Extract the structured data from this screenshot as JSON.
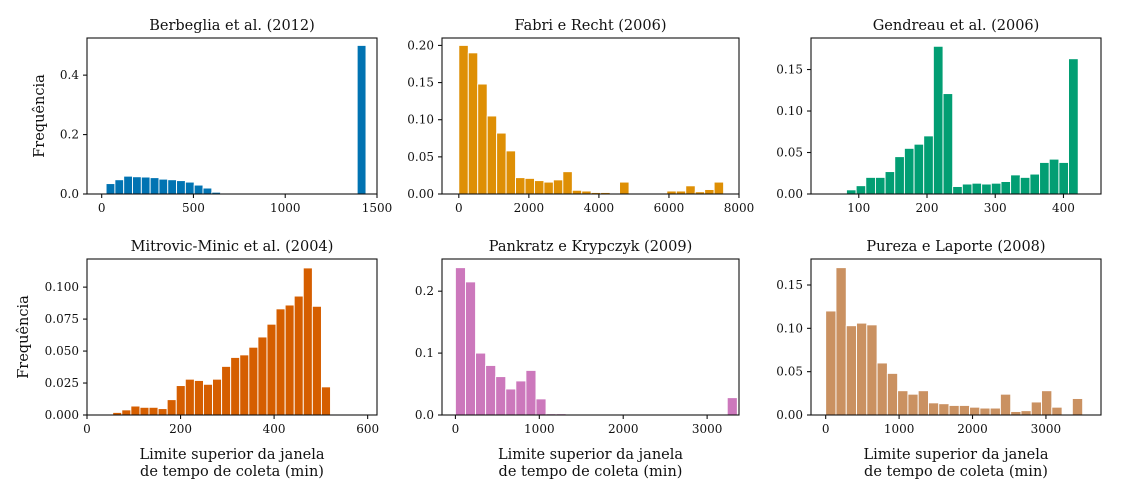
{
  "chart_data": [
    {
      "type": "bar",
      "title": "Berbeglia et al. (2012)",
      "ylabel": "Frequência",
      "xlabel": "",
      "color": "#0173b2",
      "xlim": [
        -80,
        1500
      ],
      "ylim": [
        0,
        0.525
      ],
      "xticks": [
        0,
        500,
        1000,
        1500
      ],
      "xtick_labels": [
        "0",
        "500",
        "1000",
        "1500"
      ],
      "yticks": [
        0.0,
        0.2,
        0.4
      ],
      "ytick_labels": [
        "0.0",
        "0.2",
        "0.4"
      ],
      "bin_width": 48,
      "bin_start": [
        24,
        72,
        120,
        168,
        216,
        264,
        312,
        360,
        408,
        456,
        504,
        552,
        600,
        648,
        1392
      ],
      "values": [
        0.035,
        0.048,
        0.06,
        0.058,
        0.057,
        0.055,
        0.05,
        0.048,
        0.045,
        0.04,
        0.03,
        0.02,
        0.006,
        0.002,
        0.5
      ]
    },
    {
      "type": "bar",
      "title": "Fabri e Recht (2006)",
      "ylabel": "",
      "xlabel": "",
      "color": "#de8f05",
      "xlim": [
        -480,
        8000
      ],
      "ylim": [
        0,
        0.21
      ],
      "xticks": [
        0,
        2000,
        4000,
        6000,
        8000
      ],
      "xtick_labels": [
        "0",
        "2000",
        "4000",
        "6000",
        "8000"
      ],
      "yticks": [
        0.0,
        0.05,
        0.1,
        0.15,
        0.2
      ],
      "ytick_labels": [
        "0.00",
        "0.05",
        "0.10",
        "0.15",
        "0.20"
      ],
      "bin_width": 270,
      "bin_start": [
        0,
        270,
        540,
        810,
        1080,
        1350,
        1620,
        1890,
        2160,
        2430,
        2700,
        2970,
        3240,
        3510,
        3780,
        4050,
        4590,
        5940,
        6210,
        6480,
        6750,
        7020,
        7290
      ],
      "values": [
        0.2,
        0.19,
        0.148,
        0.105,
        0.082,
        0.058,
        0.022,
        0.021,
        0.018,
        0.016,
        0.019,
        0.03,
        0.005,
        0.004,
        0.002,
        0.002,
        0.016,
        0.004,
        0.004,
        0.011,
        0.003,
        0.006,
        0.016
      ]
    },
    {
      "type": "bar",
      "title": "Gendreau et al. (2006)",
      "ylabel": "",
      "xlabel": "",
      "color": "#029e73",
      "xlim": [
        30,
        455
      ],
      "ylim": [
        0,
        0.188
      ],
      "xticks": [
        100,
        200,
        300,
        400
      ],
      "xtick_labels": [
        "100",
        "200",
        "300",
        "400"
      ],
      "yticks": [
        0.0,
        0.05,
        0.1,
        0.15
      ],
      "ytick_labels": [
        "0.00",
        "0.05",
        "0.10",
        "0.15"
      ],
      "bin_width": 14.15,
      "bin_start": [
        82,
        96.15,
        110.3,
        124.45,
        138.6,
        152.75,
        166.9,
        181.05,
        195.2,
        209.35,
        223.5,
        237.65,
        251.8,
        265.95,
        280.1,
        294.25,
        308.4,
        322.55,
        336.7,
        350.85,
        365,
        379.15,
        393.3,
        407.45,
        421.6
      ],
      "values": [
        0.005,
        0.01,
        0.02,
        0.02,
        0.027,
        0.045,
        0.055,
        0.06,
        0.07,
        0.178,
        0.121,
        0.009,
        0.012,
        0.013,
        0.012,
        0.013,
        0.015,
        0.023,
        0.02,
        0.024,
        0.038,
        0.042,
        0.038,
        0.163,
        0.0
      ]
    },
    {
      "type": "bar",
      "title": "Mitrovic-Minic et al. (2004)",
      "ylabel": "Frequência",
      "xlabel": "Limite superior da janela\nde tempo de coleta (min)",
      "color": "#d55e00",
      "xlim": [
        0,
        620
      ],
      "ylim": [
        0,
        0.122
      ],
      "xticks": [
        0,
        200,
        400,
        600
      ],
      "xtick_labels": [
        "0",
        "200",
        "400",
        "600"
      ],
      "yticks": [
        0.0,
        0.025,
        0.05,
        0.075,
        0.1
      ],
      "ytick_labels": [
        "0.000",
        "0.025",
        "0.050",
        "0.075",
        "0.100"
      ],
      "bin_width": 19.4,
      "bin_start": [
        55,
        74.4,
        93.8,
        113.2,
        132.6,
        152,
        171.4,
        190.8,
        210.2,
        229.6,
        249,
        268.4,
        287.8,
        307.2,
        326.6,
        346,
        365.4,
        384.8,
        404.2,
        423.6,
        443,
        462.4,
        481.8,
        501.2,
        520.6,
        540,
        559.4
      ],
      "values": [
        0.002,
        0.004,
        0.007,
        0.006,
        0.006,
        0.005,
        0.012,
        0.023,
        0.028,
        0.027,
        0.024,
        0.028,
        0.038,
        0.045,
        0.047,
        0.053,
        0.061,
        0.071,
        0.083,
        0.086,
        0.093,
        0.115,
        0.085,
        0.022,
        0.0,
        0.0,
        0.0
      ]
    },
    {
      "type": "bar",
      "title": "Pankratz e Krypczyk (2009)",
      "ylabel": "",
      "xlabel": "Limite superior da janela\nde tempo de coleta (min)",
      "color": "#cc78bc",
      "xlim": [
        -160,
        3380
      ],
      "ylim": [
        0,
        0.252
      ],
      "xticks": [
        0,
        1000,
        2000,
        3000
      ],
      "xtick_labels": [
        "0",
        "1000",
        "2000",
        "3000"
      ],
      "yticks": [
        0.0,
        0.1,
        0.2
      ],
      "ytick_labels": [
        "0.0",
        "0.1",
        "0.2"
      ],
      "bin_width": 120,
      "bin_start": [
        0,
        120,
        240,
        360,
        480,
        600,
        720,
        840,
        960,
        1080,
        1200,
        1320,
        1440,
        1560,
        1680,
        1800,
        1920,
        2280,
        2760,
        3240
      ],
      "values": [
        0.238,
        0.215,
        0.1,
        0.08,
        0.062,
        0.042,
        0.055,
        0.072,
        0.026,
        0.002,
        0.002,
        0.001,
        0.001,
        0.001,
        0.001,
        0.001,
        0.001,
        0.001,
        0.001,
        0.028
      ]
    },
    {
      "type": "bar",
      "title": "Pureza e Laporte (2008)",
      "ylabel": "",
      "xlabel": "Limite superior da janela\nde tempo de coleta (min)",
      "color": "#ca9161",
      "xlim": [
        -200,
        3750
      ],
      "ylim": [
        0,
        0.18
      ],
      "xticks": [
        0,
        1000,
        2000,
        3000
      ],
      "xtick_labels": [
        "0",
        "1000",
        "2000",
        "3000"
      ],
      "yticks": [
        0.0,
        0.05,
        0.1,
        0.15
      ],
      "ytick_labels": [
        "0.00",
        "0.05",
        "0.10",
        "0.15"
      ],
      "bin_width": 140,
      "bin_start": [
        0,
        140,
        280,
        420,
        560,
        700,
        840,
        980,
        1120,
        1260,
        1400,
        1540,
        1680,
        1820,
        1960,
        2100,
        2240,
        2380,
        2520,
        2660,
        2800,
        2940,
        3080,
        3220,
        3360
      ],
      "values": [
        0.12,
        0.17,
        0.103,
        0.106,
        0.104,
        0.06,
        0.048,
        0.028,
        0.024,
        0.028,
        0.014,
        0.013,
        0.011,
        0.011,
        0.009,
        0.008,
        0.008,
        0.024,
        0.004,
        0.005,
        0.015,
        0.028,
        0.009,
        0.0,
        0.019
      ]
    }
  ]
}
